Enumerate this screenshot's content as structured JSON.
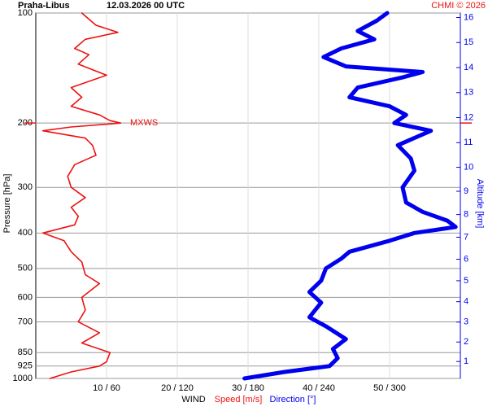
{
  "chart_data": {
    "type": "profile",
    "title": "Praha-Libus",
    "subtitle": "12.03.2026 00 UTC",
    "credit": "CHMI © 2026",
    "y_label": "Pressure [hPa]",
    "y2_label": "Altitude [km]",
    "x_label": "WIND",
    "speed_label": "Speed [m/s]",
    "direction_label": "Direction [°]",
    "log_y": true,
    "grid": true,
    "ylim": [
      1000,
      100
    ],
    "yticks": [
      100,
      200,
      300,
      400,
      500,
      600,
      700,
      850,
      925,
      1000
    ],
    "y2ticks": [
      1,
      2,
      3,
      4,
      5,
      6,
      7,
      8,
      9,
      10,
      11,
      12,
      13,
      14,
      15,
      16
    ],
    "xlim": [
      0,
      60
    ],
    "x2lim": [
      0,
      360
    ],
    "xticks": [
      {
        "value": 10,
        "label": "10 / 60"
      },
      {
        "value": 20,
        "label": "20 / 120"
      },
      {
        "value": 30,
        "label": "30 / 180"
      },
      {
        "value": 40,
        "label": "40 / 240"
      },
      {
        "value": 50,
        "label": "50 / 300"
      }
    ],
    "mxws": {
      "label": "MXWS",
      "y": 200
    },
    "series": [
      {
        "name": "Speed [m/s]",
        "color": "#ee1111",
        "axis": "x",
        "y": [
          100,
          108,
          113,
          118,
          125,
          130,
          138,
          148,
          160,
          170,
          180,
          190,
          197,
          200,
          205,
          210,
          220,
          230,
          245,
          260,
          280,
          300,
          320,
          340,
          360,
          380,
          400,
          420,
          450,
          480,
          520,
          550,
          600,
          650,
          700,
          750,
          800,
          850,
          900,
          925,
          960,
          1000
        ],
        "values": [
          6.5,
          8.5,
          11.6,
          7,
          5.5,
          7.5,
          6,
          10,
          5,
          6.5,
          5,
          9,
          10.5,
          12,
          5,
          1,
          7,
          8,
          8.5,
          5.5,
          4.5,
          5,
          7,
          5,
          6,
          5.5,
          1,
          4,
          5,
          6.5,
          7,
          9,
          6.5,
          7,
          6,
          9,
          6.5,
          10.5,
          10,
          9,
          5,
          2
        ]
      },
      {
        "name": "Direction [°]",
        "color": "#0000ee",
        "axis": "x2",
        "y": [
          100,
          105,
          112,
          118,
          125,
          132,
          140,
          145,
          150,
          160,
          170,
          180,
          190,
          200,
          210,
          230,
          250,
          270,
          300,
          330,
          350,
          370,
          385,
          400,
          420,
          450,
          470,
          500,
          540,
          580,
          620,
          680,
          720,
          780,
          830,
          880,
          925,
          960,
          1000
        ],
        "values": [
          298,
          289,
          273,
          287,
          259,
          244,
          263,
          328,
          311,
          273,
          266,
          300,
          314,
          304,
          335,
          307,
          318,
          321,
          311,
          314,
          328,
          349,
          356,
          321,
          300,
          266,
          259,
          246,
          242,
          232,
          242,
          232,
          246,
          263,
          252,
          256,
          249,
          211,
          177
        ]
      }
    ]
  }
}
